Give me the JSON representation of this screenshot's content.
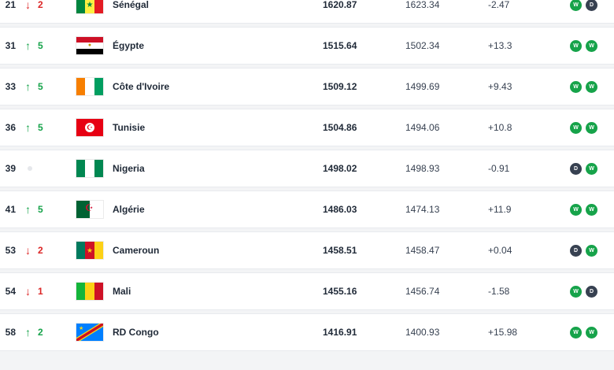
{
  "rows": [
    {
      "rank": "21",
      "move_dir": "down",
      "move_val": "2",
      "country": "Sénégal",
      "points": "1620.87",
      "previous": "1623.34",
      "diff": "-2.47",
      "form": [
        "W",
        "D"
      ],
      "flag": "senegal"
    },
    {
      "rank": "31",
      "move_dir": "up",
      "move_val": "5",
      "country": "Égypte",
      "points": "1515.64",
      "previous": "1502.34",
      "diff": "+13.3",
      "form": [
        "W",
        "W"
      ],
      "flag": "egypt"
    },
    {
      "rank": "33",
      "move_dir": "up",
      "move_val": "5",
      "country": "Côte d'Ivoire",
      "points": "1509.12",
      "previous": "1499.69",
      "diff": "+9.43",
      "form": [
        "W",
        "W"
      ],
      "flag": "ivory-coast"
    },
    {
      "rank": "36",
      "move_dir": "up",
      "move_val": "5",
      "country": "Tunisie",
      "points": "1504.86",
      "previous": "1494.06",
      "diff": "+10.8",
      "form": [
        "W",
        "W"
      ],
      "flag": "tunisia"
    },
    {
      "rank": "39",
      "move_dir": "same",
      "move_val": "",
      "country": "Nigeria",
      "points": "1498.02",
      "previous": "1498.93",
      "diff": "-0.91",
      "form": [
        "D",
        "W"
      ],
      "flag": "nigeria"
    },
    {
      "rank": "41",
      "move_dir": "up",
      "move_val": "5",
      "country": "Algérie",
      "points": "1486.03",
      "previous": "1474.13",
      "diff": "+11.9",
      "form": [
        "W",
        "W"
      ],
      "flag": "algeria"
    },
    {
      "rank": "53",
      "move_dir": "down",
      "move_val": "2",
      "country": "Cameroun",
      "points": "1458.51",
      "previous": "1458.47",
      "diff": "+0.04",
      "form": [
        "D",
        "W"
      ],
      "flag": "cameroon"
    },
    {
      "rank": "54",
      "move_dir": "down",
      "move_val": "1",
      "country": "Mali",
      "points": "1455.16",
      "previous": "1456.74",
      "diff": "-1.58",
      "form": [
        "W",
        "D"
      ],
      "flag": "mali"
    },
    {
      "rank": "58",
      "move_dir": "up",
      "move_val": "2",
      "country": "RD Congo",
      "points": "1416.91",
      "previous": "1400.93",
      "diff": "+15.98",
      "form": [
        "W",
        "W"
      ],
      "flag": "dr-congo"
    }
  ],
  "colors": {
    "win": "#16a34a",
    "draw": "#374151",
    "up": "#16a34a",
    "down": "#dc2626"
  }
}
